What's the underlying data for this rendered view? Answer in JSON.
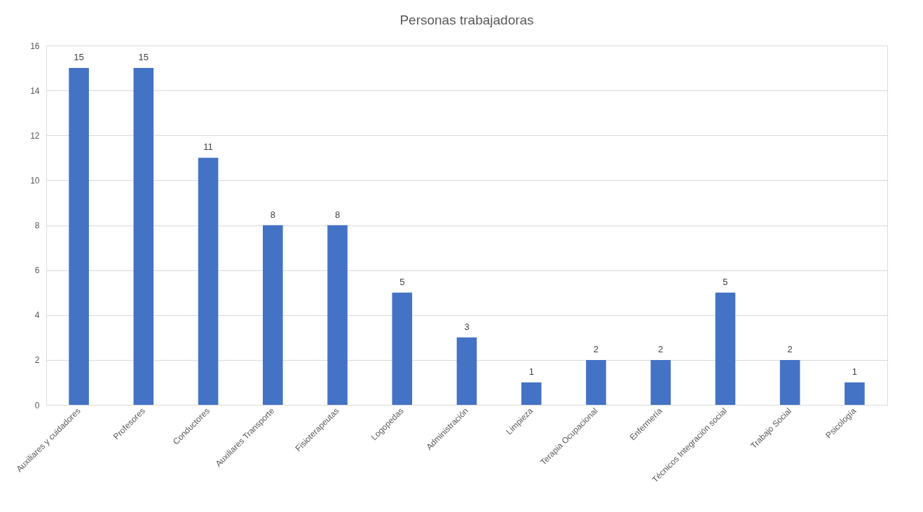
{
  "chart_data": {
    "type": "bar",
    "title": "Personas trabajadoras",
    "categories": [
      "Auxiliares y cuidadores",
      "Profesores",
      "Conductores",
      "Auxiliares Transporte",
      "Fisioterapeutas",
      "Logopedas",
      "Administración",
      "Limpieza",
      "Terapia Ocupacional",
      "Enfermería",
      "Técnicos Integración social",
      "Trabajo Social",
      "Psicología"
    ],
    "values": [
      15,
      15,
      11,
      8,
      8,
      5,
      3,
      1,
      2,
      2,
      5,
      2,
      1
    ],
    "color": "#4472c4",
    "ylim": [
      0,
      16
    ],
    "yticks": [
      0,
      2,
      4,
      6,
      8,
      10,
      12,
      14,
      16
    ],
    "grid": "y",
    "data_labels": true
  }
}
